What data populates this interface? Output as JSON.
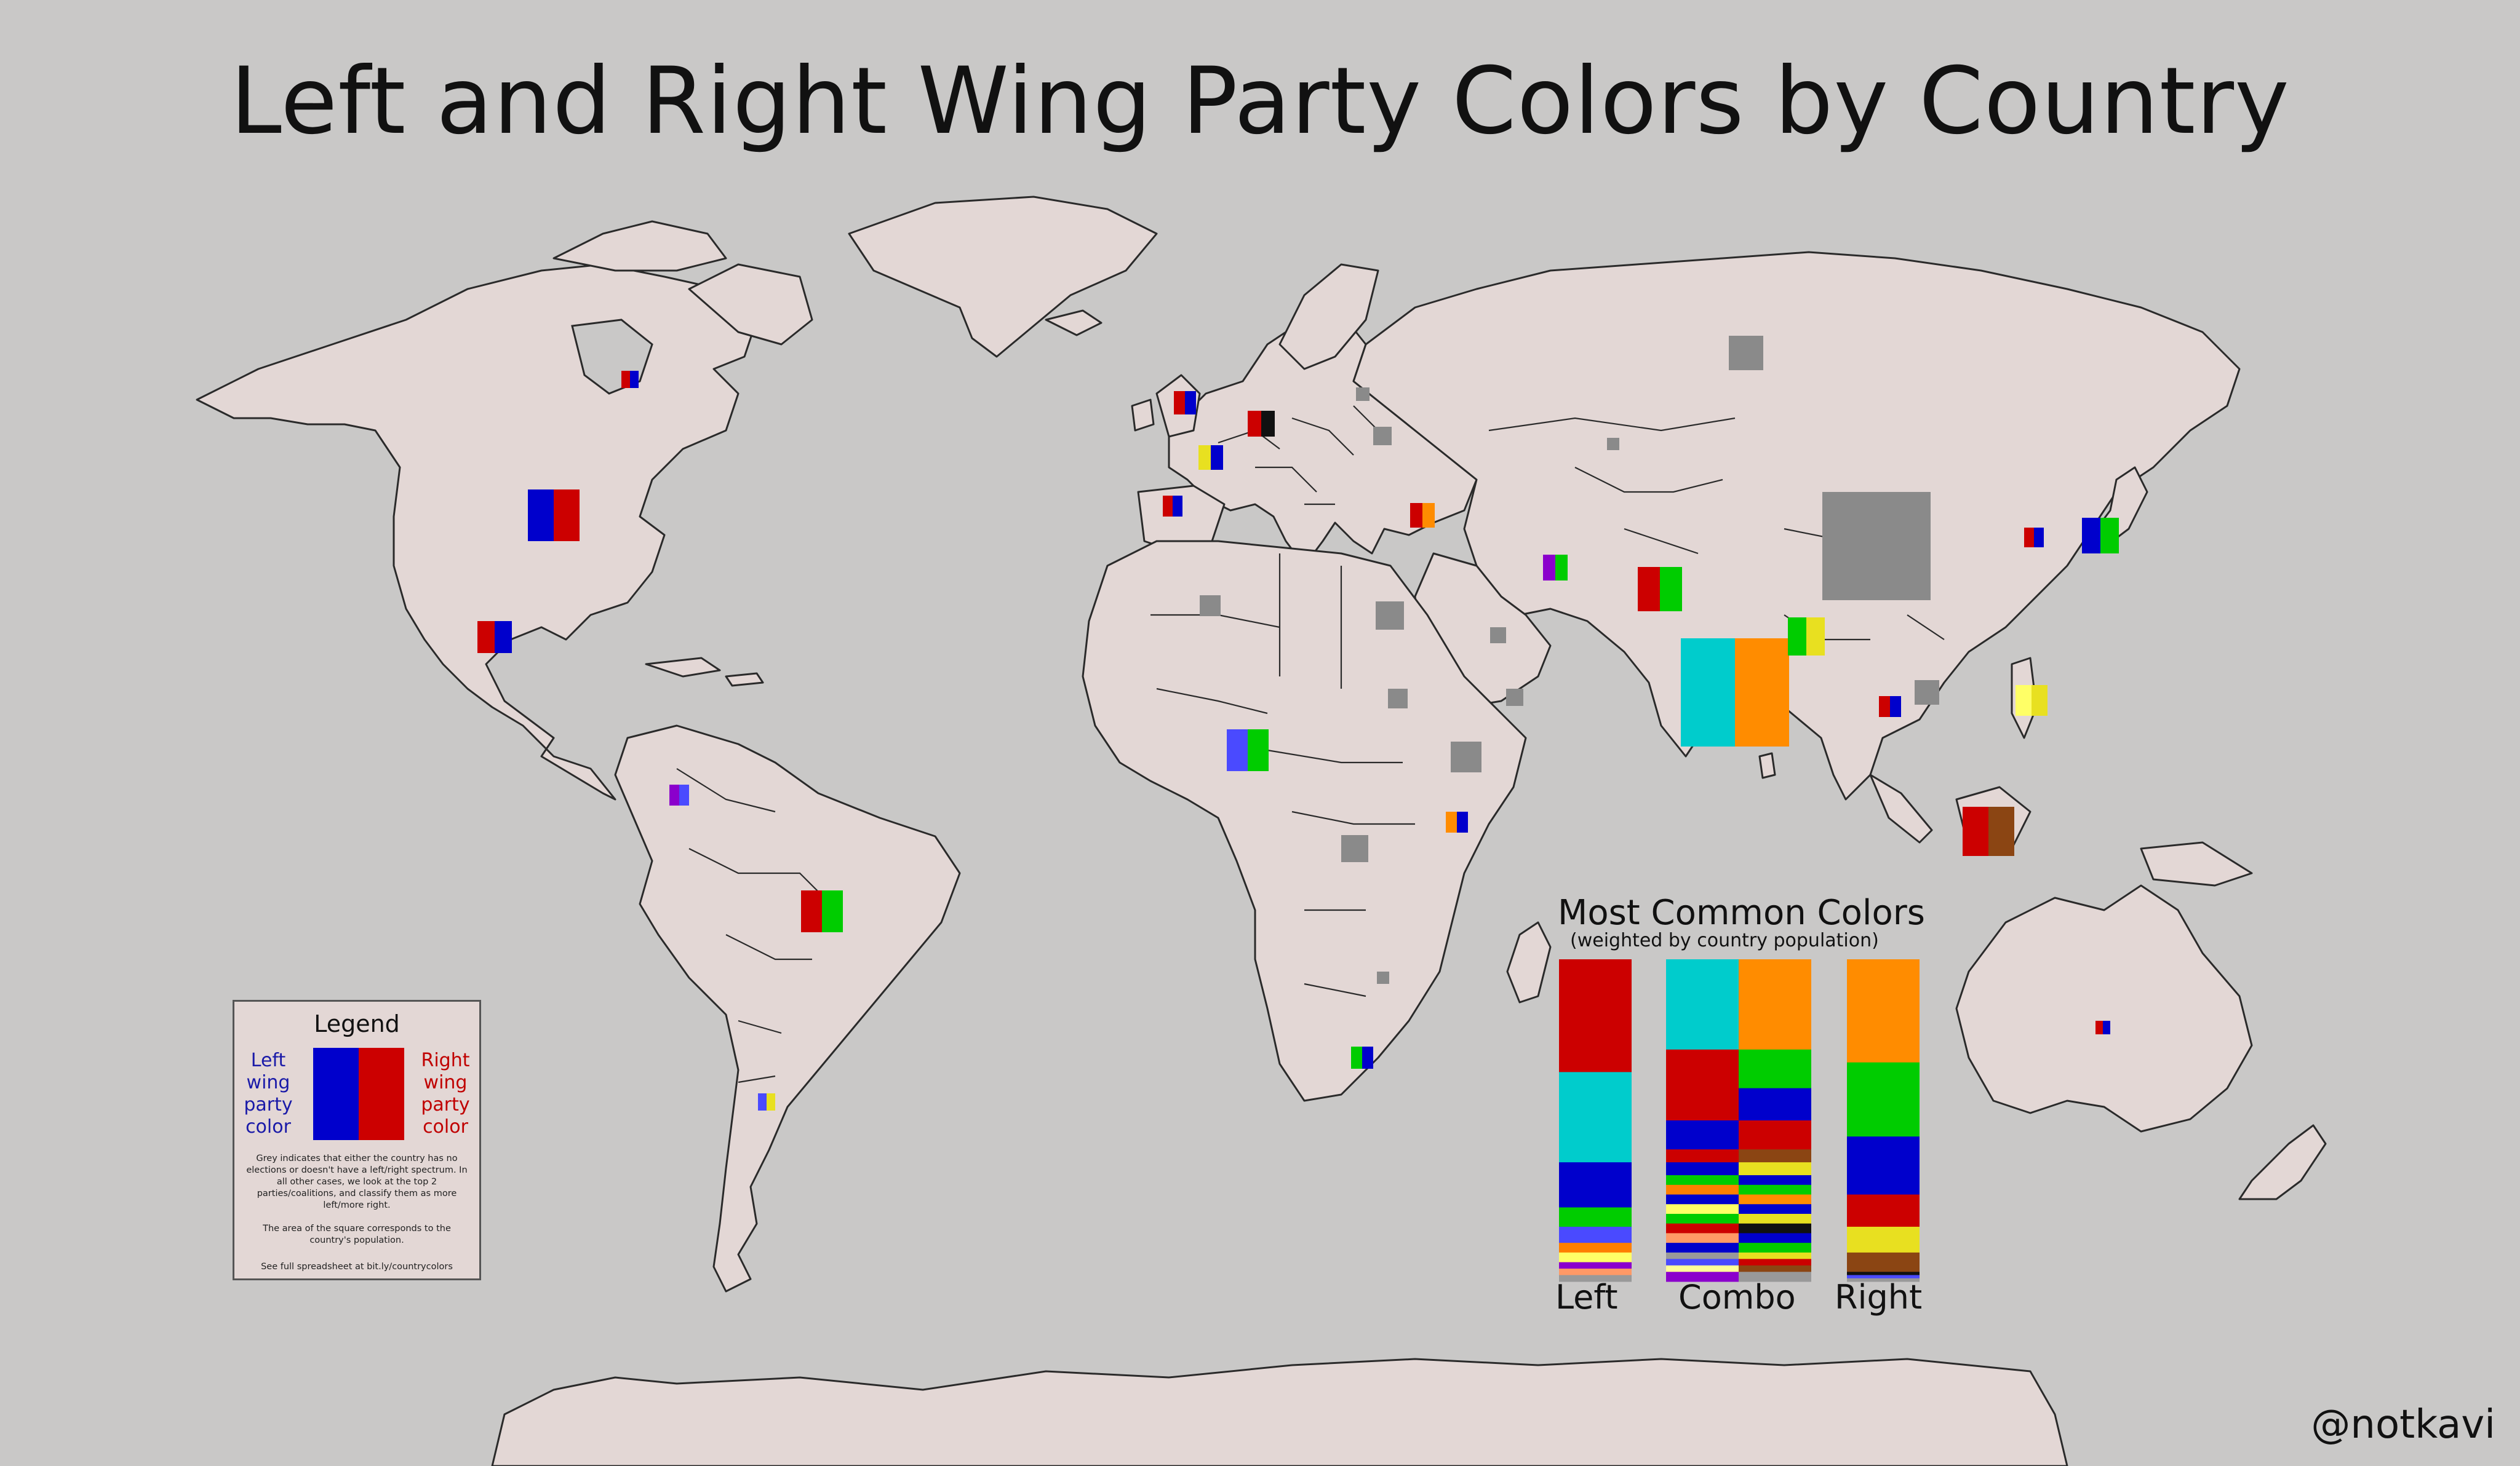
{
  "title": "Left and Right Wing Party Colors by Country",
  "legend": {
    "title": "Legend",
    "left_label": "Left wing party color",
    "right_label": "Right wing party color",
    "left_color": "#0000cc",
    "right_color": "#cc0000",
    "note_1": "Grey indicates that either the country has no elections or doesn't have a left/right spectrum. In all other cases, we look at the top 2 parties/coalitions, and classify them as more left/more right.",
    "note_2": "The area of the square corresponds to the country's population.",
    "note_3": "See full spreadsheet at bit.ly/countrycolors"
  },
  "most_common": {
    "title": "Most Common Colors",
    "subtitle": "(weighted by country population)",
    "labels": {
      "left": "Left",
      "combo": "Combo",
      "right": "Right"
    },
    "left": [
      {
        "color": "#cc0000",
        "share": 35
      },
      {
        "color": "#00cccc",
        "share": 28
      },
      {
        "color": "#0000cc",
        "share": 14
      },
      {
        "color": "#00cc00",
        "share": 6
      },
      {
        "color": "#4a4aff",
        "share": 5
      },
      {
        "color": "#ff7f00",
        "share": 3
      },
      {
        "color": "#ffff66",
        "share": 3
      },
      {
        "color": "#8b00cc",
        "share": 2
      },
      {
        "color": "#ff9966",
        "share": 2
      },
      {
        "color": "#999999",
        "share": 2
      }
    ],
    "combo_left": [
      {
        "color": "#00cccc",
        "share": 28
      },
      {
        "color": "#cc0000",
        "share": 12
      },
      {
        "color": "#cc0000",
        "share": 10
      },
      {
        "color": "#0000cc",
        "share": 9
      },
      {
        "color": "#cc0000",
        "share": 4
      },
      {
        "color": "#0000cc",
        "share": 4
      },
      {
        "color": "#00cc00",
        "share": 3
      },
      {
        "color": "#ff7f00",
        "share": 3
      },
      {
        "color": "#0000cc",
        "share": 3
      },
      {
        "color": "#ffff66",
        "share": 3
      },
      {
        "color": "#00cc00",
        "share": 3
      },
      {
        "color": "#cc0000",
        "share": 3
      },
      {
        "color": "#ff9966",
        "share": 3
      },
      {
        "color": "#0000cc",
        "share": 3
      },
      {
        "color": "#999999",
        "share": 2
      },
      {
        "color": "#4a4aff",
        "share": 2
      },
      {
        "color": "#ffff99",
        "share": 2
      },
      {
        "color": "#8b00cc",
        "share": 3
      }
    ],
    "combo_right": [
      {
        "color": "#ff8c00",
        "share": 28
      },
      {
        "color": "#00cc00",
        "share": 12
      },
      {
        "color": "#0000cc",
        "share": 10
      },
      {
        "color": "#cc0000",
        "share": 9
      },
      {
        "color": "#8b4513",
        "share": 4
      },
      {
        "color": "#e8e020",
        "share": 4
      },
      {
        "color": "#0000cc",
        "share": 3
      },
      {
        "color": "#00cc00",
        "share": 3
      },
      {
        "color": "#ff8c00",
        "share": 3
      },
      {
        "color": "#0000cc",
        "share": 3
      },
      {
        "color": "#e8e020",
        "share": 3
      },
      {
        "color": "#111111",
        "share": 3
      },
      {
        "color": "#0000cc",
        "share": 3
      },
      {
        "color": "#00cc00",
        "share": 3
      },
      {
        "color": "#e8e020",
        "share": 2
      },
      {
        "color": "#cc0000",
        "share": 2
      },
      {
        "color": "#8b4513",
        "share": 2
      },
      {
        "color": "#999999",
        "share": 3
      }
    ],
    "right": [
      {
        "color": "#ff8c00",
        "share": 32
      },
      {
        "color": "#00cc00",
        "share": 23
      },
      {
        "color": "#0000cc",
        "share": 18
      },
      {
        "color": "#cc0000",
        "share": 10
      },
      {
        "color": "#e8e020",
        "share": 8
      },
      {
        "color": "#8b4513",
        "share": 6
      },
      {
        "color": "#111111",
        "share": 1
      },
      {
        "color": "#4a4aff",
        "share": 1
      },
      {
        "color": "#999999",
        "share": 1
      }
    ]
  },
  "credit": "@notkavi"
}
